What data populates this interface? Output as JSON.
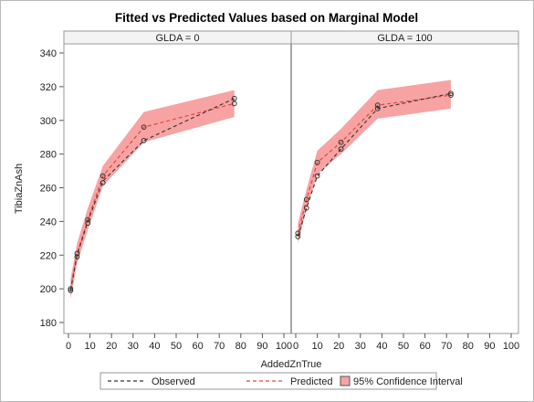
{
  "chart_data": {
    "type": "line",
    "title": "Fitted vs Predicted Values based on Marginal Model",
    "xlabel": "AddedZnTrue",
    "ylabel": "TibiaZnAsh",
    "xlim": [
      0,
      100
    ],
    "ylim": [
      180,
      340
    ],
    "x_ticks": [
      0,
      10,
      20,
      30,
      40,
      50,
      60,
      70,
      80,
      90,
      100
    ],
    "y_ticks": [
      180,
      200,
      220,
      240,
      260,
      280,
      300,
      320,
      340
    ],
    "grid": false,
    "legend_position": "bottom",
    "legend": [
      {
        "label": "Observed",
        "color": "#333333",
        "style": "dashed"
      },
      {
        "label": "Predicted",
        "color": "#e0473f",
        "style": "dashed"
      },
      {
        "label": "95% Confidence Interval",
        "color": "#f7a3a3",
        "style": "band"
      }
    ],
    "panels": [
      {
        "label": "GLDA = 0",
        "x": [
          1,
          4,
          9,
          16,
          35,
          77
        ],
        "observed": [
          199,
          220,
          240,
          264,
          288,
          313
        ],
        "predicted": [
          200,
          221,
          241,
          267,
          296,
          310
        ],
        "ci_lower": [
          194,
          215,
          235,
          261,
          287,
          302
        ],
        "ci_upper": [
          206,
          227,
          248,
          273,
          305,
          318
        ],
        "points": [
          {
            "x": 1,
            "y": 199
          },
          {
            "x": 1,
            "y": 200
          },
          {
            "x": 4,
            "y": 219
          },
          {
            "x": 4,
            "y": 221
          },
          {
            "x": 9,
            "y": 239
          },
          {
            "x": 9,
            "y": 241
          },
          {
            "x": 16,
            "y": 263
          },
          {
            "x": 16,
            "y": 267
          },
          {
            "x": 35,
            "y": 288
          },
          {
            "x": 35,
            "y": 296
          },
          {
            "x": 77,
            "y": 310
          },
          {
            "x": 77,
            "y": 313
          }
        ]
      },
      {
        "label": "GLDA = 100",
        "x": [
          1,
          5,
          10,
          21,
          38,
          72
        ],
        "observed": [
          231,
          248,
          267,
          283,
          307,
          316
        ],
        "predicted": [
          233,
          253,
          275,
          287,
          309,
          315
        ],
        "ci_lower": [
          227,
          247,
          268,
          280,
          301,
          307
        ],
        "ci_upper": [
          239,
          259,
          282,
          295,
          318,
          324
        ],
        "points": [
          {
            "x": 1,
            "y": 231
          },
          {
            "x": 1,
            "y": 233
          },
          {
            "x": 5,
            "y": 248
          },
          {
            "x": 5,
            "y": 253
          },
          {
            "x": 10,
            "y": 267
          },
          {
            "x": 10,
            "y": 275
          },
          {
            "x": 21,
            "y": 283
          },
          {
            "x": 21,
            "y": 287
          },
          {
            "x": 38,
            "y": 307
          },
          {
            "x": 38,
            "y": 309
          },
          {
            "x": 72,
            "y": 315
          },
          {
            "x": 72,
            "y": 316
          }
        ]
      }
    ]
  }
}
